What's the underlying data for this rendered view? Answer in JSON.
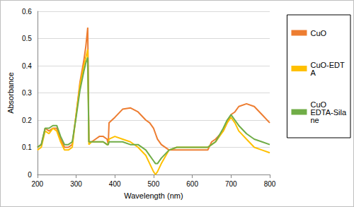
{
  "chart_data": {
    "type": "line",
    "x_label": "Wavelength (nm)",
    "y_label": "Absorbance",
    "x": [
      200,
      210,
      220,
      230,
      240,
      250,
      260,
      270,
      280,
      290,
      300,
      310,
      320,
      325,
      330,
      333,
      340,
      350,
      360,
      370,
      380,
      383,
      385,
      400,
      420,
      440,
      460,
      480,
      490,
      500,
      505,
      510,
      520,
      540,
      560,
      580,
      600,
      620,
      640,
      650,
      660,
      680,
      690,
      700,
      710,
      720,
      740,
      760,
      780,
      800
    ],
    "series": [
      {
        "name": "CuO",
        "color": "#ed7d31",
        "values": [
          0.1,
          0.11,
          0.17,
          0.16,
          0.17,
          0.17,
          0.13,
          0.1,
          0.1,
          0.11,
          0.22,
          0.34,
          0.42,
          0.47,
          0.54,
          0.12,
          0.12,
          0.13,
          0.14,
          0.14,
          0.13,
          0.11,
          0.19,
          0.21,
          0.24,
          0.245,
          0.23,
          0.2,
          0.19,
          0.17,
          0.15,
          0.13,
          0.11,
          0.09,
          0.09,
          0.09,
          0.09,
          0.09,
          0.09,
          0.12,
          0.13,
          0.16,
          0.19,
          0.22,
          0.23,
          0.25,
          0.26,
          0.25,
          0.22,
          0.19
        ]
      },
      {
        "name": "CuO-EDTA",
        "color": "#ffc000",
        "values": [
          0.09,
          0.1,
          0.16,
          0.15,
          0.17,
          0.16,
          0.12,
          0.09,
          0.09,
          0.1,
          0.22,
          0.33,
          0.4,
          0.43,
          0.46,
          0.11,
          0.12,
          0.12,
          0.12,
          0.12,
          0.11,
          0.11,
          0.13,
          0.14,
          0.13,
          0.12,
          0.1,
          0.07,
          0.04,
          0.01,
          0.0,
          0.01,
          0.04,
          0.09,
          0.1,
          0.1,
          0.1,
          0.1,
          0.1,
          0.11,
          0.12,
          0.16,
          0.19,
          0.21,
          0.19,
          0.16,
          0.13,
          0.1,
          0.09,
          0.08
        ]
      },
      {
        "name": "CuO EDTA-Silane",
        "color": "#70ad47",
        "values": [
          0.1,
          0.11,
          0.17,
          0.17,
          0.18,
          0.18,
          0.14,
          0.11,
          0.11,
          0.12,
          0.21,
          0.31,
          0.38,
          0.41,
          0.43,
          0.12,
          0.12,
          0.12,
          0.12,
          0.12,
          0.11,
          0.11,
          0.12,
          0.12,
          0.12,
          0.11,
          0.11,
          0.09,
          0.07,
          0.05,
          0.04,
          0.04,
          0.06,
          0.09,
          0.1,
          0.1,
          0.1,
          0.1,
          0.1,
          0.11,
          0.12,
          0.17,
          0.2,
          0.22,
          0.2,
          0.18,
          0.15,
          0.13,
          0.12,
          0.11
        ]
      }
    ],
    "xlim": [
      200,
      800
    ],
    "xticks": [
      200,
      300,
      400,
      500,
      600,
      700,
      800
    ],
    "ylim": [
      0,
      0.6
    ],
    "yticks": [
      0,
      0.1,
      0.2,
      0.3,
      0.4,
      0.5,
      0.6
    ],
    "grid": true,
    "legend": "right"
  }
}
